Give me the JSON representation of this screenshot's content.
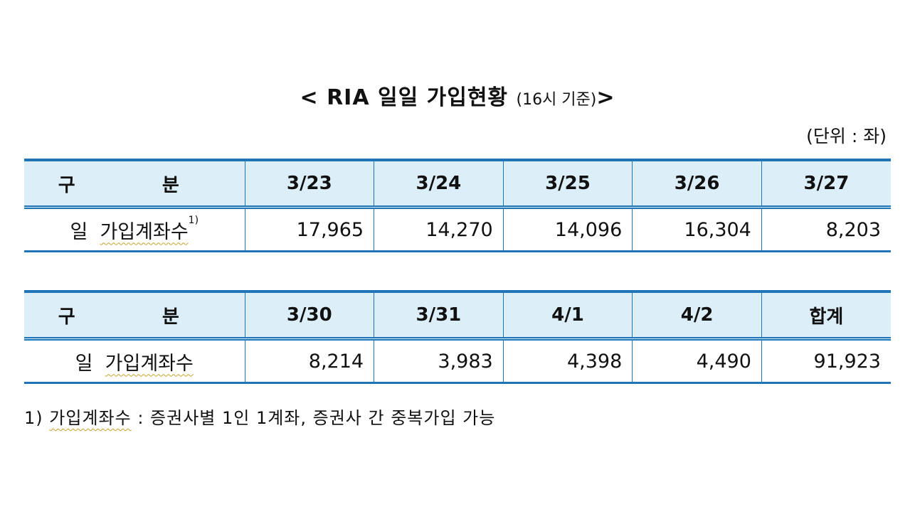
{
  "title": {
    "main": "< RIA 일일 가입현황",
    "sub": "(16시 기준)",
    "close": ">"
  },
  "unit": "(단위 : 좌)",
  "tables": [
    {
      "header_label": "구 분",
      "headers": [
        "3/23",
        "3/24",
        "3/25",
        "3/26",
        "3/27"
      ],
      "row_label_word1": "일",
      "row_label_word2": "가입계좌수",
      "row_label_sup": "1)",
      "values": [
        "17,965",
        "14,270",
        "14,096",
        "16,304",
        "8,203"
      ]
    },
    {
      "header_label": "구 분",
      "headers": [
        "3/30",
        "3/31",
        "4/1",
        "4/2",
        "합계"
      ],
      "row_label_word1": "일",
      "row_label_word2": "가입계좌수",
      "values": [
        "8,214",
        "3,983",
        "4,398",
        "4,490",
        "91,923"
      ]
    }
  ],
  "footnote": {
    "number": "1)",
    "term": "가입계좌수",
    "text": " : 증권사별 1인 1계좌, 증권사 간 중복가입 가능"
  },
  "colors": {
    "header_bg": "#dceef8",
    "border": "#1f75b8",
    "spellcheck_underline": "#c9a227"
  }
}
